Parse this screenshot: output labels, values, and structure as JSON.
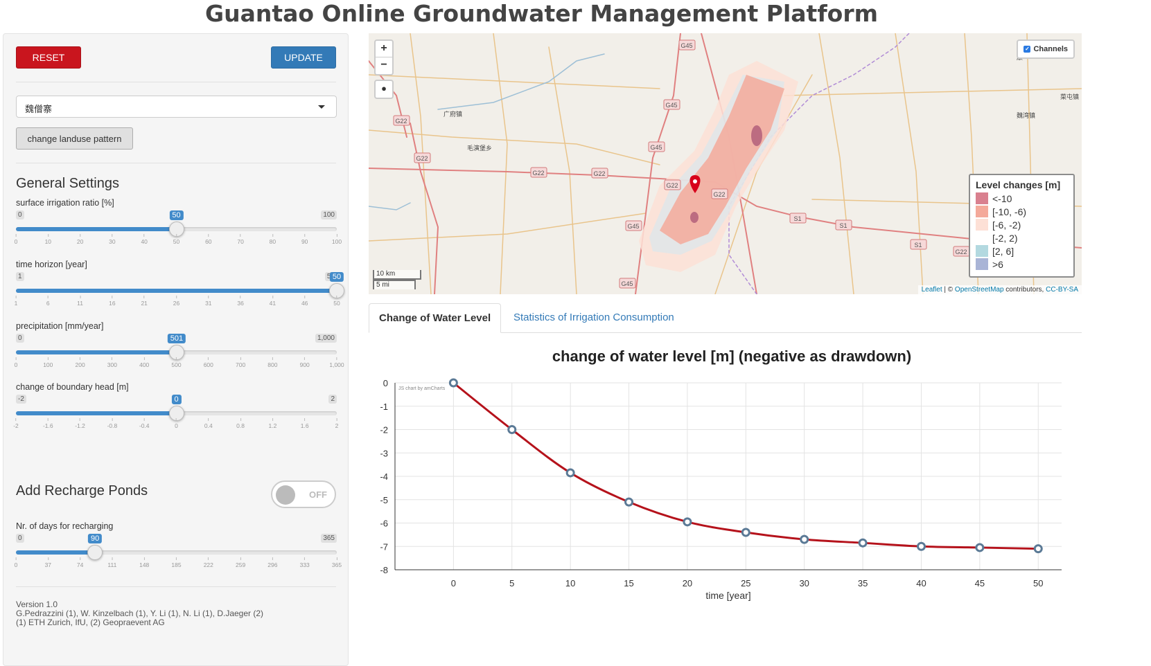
{
  "title": "Guantao Online Groundwater Management Platform",
  "sidebar": {
    "reset_label": "RESET",
    "update_label": "UPDATE",
    "village_select": "魏僧寨",
    "landuse_button": "change landuse pattern",
    "general_settings": "General Settings",
    "sliders": [
      {
        "label": "surface irrigation ratio [%]",
        "min": "0",
        "max": "100",
        "value": "50",
        "fraction": 0.5,
        "ticks": [
          "0",
          "10",
          "20",
          "30",
          "40",
          "50",
          "60",
          "70",
          "80",
          "90",
          "100"
        ]
      },
      {
        "label": "time horizon [year]",
        "min": "1",
        "max": "50",
        "value": "50",
        "fraction": 1.0,
        "ticks": [
          "1",
          "6",
          "11",
          "16",
          "21",
          "26",
          "31",
          "36",
          "41",
          "46",
          "50"
        ]
      },
      {
        "label": "precipitation [mm/year]",
        "min": "0",
        "max": "1,000",
        "value": "501",
        "fraction": 0.501,
        "ticks": [
          "0",
          "100",
          "200",
          "300",
          "400",
          "500",
          "600",
          "700",
          "800",
          "900",
          "1,000"
        ]
      },
      {
        "label": "change of boundary head [m]",
        "min": "-2",
        "max": "2",
        "value": "0",
        "fraction": 0.5,
        "ticks": [
          "-2",
          "-1.6",
          "-1.2",
          "-0.8",
          "-0.4",
          "0",
          "0.4",
          "0.8",
          "1.2",
          "1.6",
          "2"
        ]
      }
    ],
    "recharge_heading": "Add Recharge Ponds",
    "recharge_toggle": "OFF",
    "recharge_slider": {
      "label": "Nr. of days for recharging",
      "min": "0",
      "max": "365",
      "value": "90",
      "fraction": 0.2466,
      "ticks": [
        "0",
        "37",
        "74",
        "111",
        "148",
        "185",
        "222",
        "259",
        "296",
        "333",
        "365"
      ]
    },
    "footer": {
      "version": "Version 1.0",
      "authors": "G.Pedrazzini (1), W. Kinzelbach (1), Y. Li (1), N. Li (1), D.Jaeger (2)",
      "affiliations": "(1) ETH Zurich, IfU, (2) Geopraevent AG"
    }
  },
  "map": {
    "zoom_in": "+",
    "zoom_out": "−",
    "channels_label": "Channels",
    "legend_title": "Level changes [m]",
    "legend": [
      {
        "label": "<-10",
        "color": "#d9808f"
      },
      {
        "label": "[-10, -6)",
        "color": "#f4a99a"
      },
      {
        "label": "[-6, -2)",
        "color": "#fde0d6"
      },
      {
        "label": "[-2, 2)",
        "color": "#ffffff"
      },
      {
        "label": "[2, 6]",
        "color": "#b3d9e0"
      },
      {
        "label": ">6",
        "color": "#a9b4d6"
      }
    ],
    "scale_km": "10 km",
    "scale_mi": "5 mi",
    "attribution_leaflet": "Leaflet",
    "attribution_mid": " | © ",
    "attribution_osm": "OpenStreetMap",
    "attribution_rest": " contributors, ",
    "attribution_cc": "CC-BY-SA",
    "road_labels": [
      "G45",
      "G45",
      "G45",
      "G45",
      "G45",
      "G22",
      "G22",
      "G22",
      "G22",
      "G22",
      "G22",
      "S1",
      "S1",
      "S1",
      "G22"
    ],
    "place_labels": [
      "广府镇",
      "毛演堡乡",
      "康",
      "菜屯镇",
      "魏湾镇"
    ]
  },
  "tabs": {
    "active": "Change of Water Level",
    "inactive": "Statistics of Irrigation Consumption"
  },
  "chart_data": {
    "type": "line",
    "title": "change of water level [m] (negative as drawdown)",
    "xlabel": "time [year]",
    "ylabel": "",
    "credit": "JS chart by amCharts",
    "x": [
      0,
      5,
      10,
      15,
      20,
      25,
      30,
      35,
      40,
      45,
      50
    ],
    "series": [
      {
        "values": [
          0,
          -2.0,
          -3.85,
          -5.1,
          -5.95,
          -6.4,
          -6.7,
          -6.85,
          -7.0,
          -7.05,
          -7.1
        ],
        "color": "#b5121b"
      }
    ],
    "xlim": [
      -5,
      52
    ],
    "ylim": [
      -8,
      0
    ],
    "xticks": [
      "0",
      "5",
      "10",
      "15",
      "20",
      "25",
      "30",
      "35",
      "40",
      "45",
      "50"
    ],
    "yticks": [
      "0",
      "-1",
      "-2",
      "-3",
      "-4",
      "-5",
      "-6",
      "-7",
      "-8"
    ],
    "grid": true
  }
}
